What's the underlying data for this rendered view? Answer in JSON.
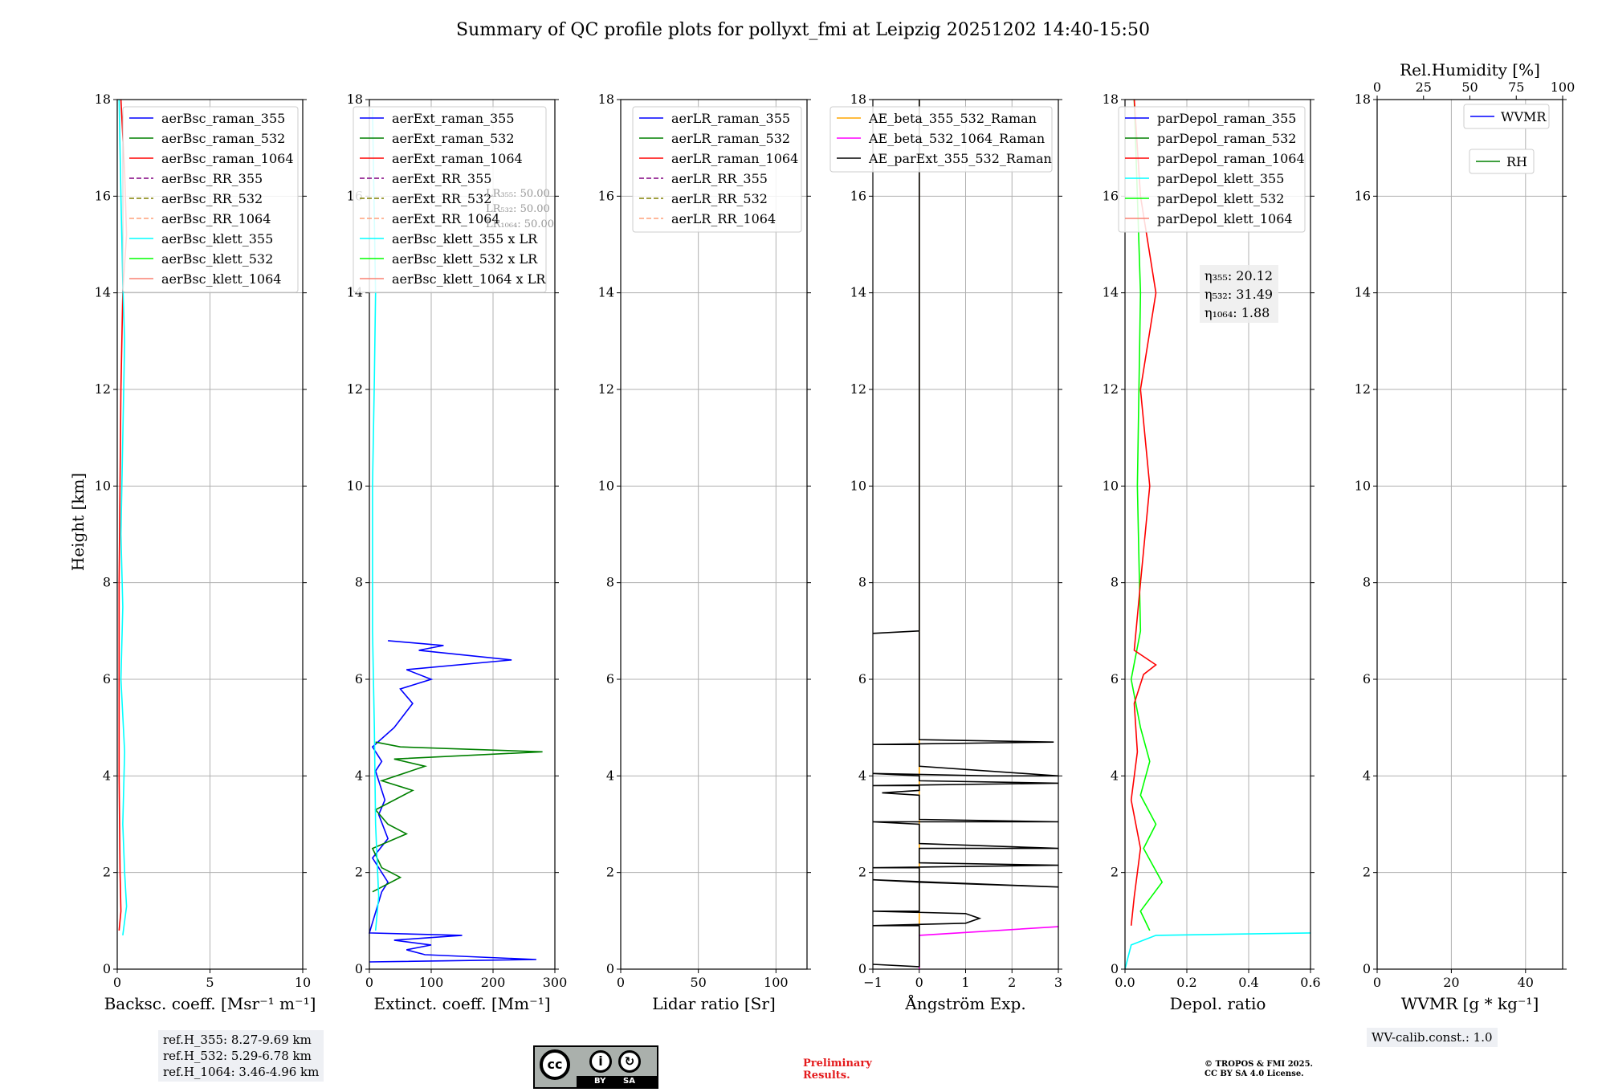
{
  "title": "Summary of QC profile plots for pollyxt_fmi at Leipzig 20251202 14:40-15:50",
  "ylabel": "Height [km]",
  "colors": {
    "blue": "#0000ff",
    "green": "#008000",
    "red": "#ff0000",
    "purple": "#800080",
    "olive": "#808000",
    "salmon": "#fa8072",
    "lightsalmon": "#ffa07a",
    "cyan": "#00ffff",
    "lime": "#00ff00",
    "orange": "#ffa500",
    "magenta": "#ff00ff",
    "black": "#000000"
  },
  "chart_data": [
    {
      "type": "line",
      "xlabel": "Backsc. coeff. [Msr⁻¹ m⁻¹]",
      "xlim": [
        0,
        10
      ],
      "ylim": [
        0,
        18
      ],
      "xticks": [
        "0",
        "5",
        "10"
      ],
      "yticks": [
        "0",
        "2",
        "4",
        "6",
        "8",
        "10",
        "12",
        "14",
        "16",
        "18"
      ],
      "legend": [
        "aerBsc_raman_355",
        "aerBsc_raman_532",
        "aerBsc_raman_1064",
        "aerBsc_RR_355",
        "aerBsc_RR_532",
        "aerBsc_RR_1064",
        "aerBsc_klett_355",
        "aerBsc_klett_532",
        "aerBsc_klett_1064"
      ],
      "series": [
        {
          "name": "aerBsc_raman_1064",
          "color": "red",
          "points": [
            [
              0.1,
              0.8
            ],
            [
              0.2,
              1.2
            ],
            [
              0.15,
              2
            ],
            [
              0.1,
              4
            ],
            [
              0.1,
              8
            ],
            [
              0.2,
              12
            ],
            [
              0.3,
              14
            ],
            [
              0.5,
              15.2
            ],
            [
              0.4,
              16.5
            ],
            [
              0.2,
              18
            ]
          ]
        },
        {
          "name": "aerBsc_klett_355",
          "color": "cyan",
          "points": [
            [
              0.3,
              0.7
            ],
            [
              0.5,
              1.3
            ],
            [
              0.4,
              2
            ],
            [
              0.3,
              3
            ],
            [
              0.4,
              4.5
            ],
            [
              0.2,
              6
            ],
            [
              0.3,
              7.5
            ],
            [
              0.2,
              9
            ],
            [
              0.3,
              11
            ],
            [
              0.4,
              13
            ],
            [
              0.3,
              14.2
            ],
            [
              0.2,
              16
            ],
            [
              0.1,
              18
            ]
          ]
        }
      ],
      "info_label": "ref.H_355: 8.27-9.69 km\nref.H_532: 5.29-6.78 km\nref.H_1064: 3.46-4.96 km",
      "info_lines": [
        "ref.H_355: 8.27-9.69 km",
        "ref.H_532: 5.29-6.78 km",
        "ref.H_1064: 3.46-4.96 km"
      ]
    },
    {
      "type": "line",
      "xlabel": "Extinct. coeff. [Mm⁻¹]",
      "xlim": [
        0,
        300
      ],
      "ylim": [
        0,
        18
      ],
      "xticks": [
        "0",
        "100",
        "200",
        "300"
      ],
      "yticks": [
        "0",
        "2",
        "4",
        "6",
        "8",
        "10",
        "12",
        "14",
        "16",
        "18"
      ],
      "legend": [
        "aerExt_raman_355",
        "aerExt_raman_532",
        "aerExt_raman_1064",
        "aerExt_RR_355",
        "aerExt_RR_532",
        "aerExt_RR_1064",
        "aerBsc_klett_355 x LR",
        "aerBsc_klett_532 x LR",
        "aerBsc_klett_1064 x LR"
      ],
      "lr_annotation": [
        "LR₃₅₅: 50.00",
        "LR₅₃₂: 50.00",
        "LR₁₀₆₄: 50.00"
      ],
      "series": [
        {
          "name": "aerExt_raman_355",
          "color": "blue",
          "points": [
            [
              0,
              0.15
            ],
            [
              270,
              0.2
            ],
            [
              90,
              0.3
            ],
            [
              60,
              0.4
            ],
            [
              100,
              0.5
            ],
            [
              40,
              0.6
            ],
            [
              150,
              0.7
            ],
            [
              0,
              0.75
            ],
            [
              20,
              1.6
            ],
            [
              30,
              1.8
            ],
            [
              20,
              2.0
            ],
            [
              5,
              2.3
            ],
            [
              30,
              2.7
            ],
            [
              15,
              3.2
            ],
            [
              25,
              3.5
            ],
            [
              10,
              4.1
            ],
            [
              20,
              4.3
            ],
            [
              5,
              4.6
            ],
            [
              40,
              5.0
            ],
            [
              70,
              5.5
            ],
            [
              50,
              5.8
            ],
            [
              100,
              6.0
            ],
            [
              60,
              6.2
            ],
            [
              230,
              6.4
            ],
            [
              80,
              6.6
            ],
            [
              120,
              6.7
            ],
            [
              30,
              6.8
            ]
          ]
        },
        {
          "name": "aerExt_raman_532",
          "color": "green",
          "points": [
            [
              5,
              1.6
            ],
            [
              50,
              1.9
            ],
            [
              20,
              2.1
            ],
            [
              5,
              2.5
            ],
            [
              60,
              2.8
            ],
            [
              30,
              3.0
            ],
            [
              10,
              3.3
            ],
            [
              70,
              3.7
            ],
            [
              20,
              3.9
            ],
            [
              90,
              4.2
            ],
            [
              40,
              4.35
            ],
            [
              280,
              4.5
            ],
            [
              50,
              4.6
            ],
            [
              10,
              4.7
            ]
          ]
        },
        {
          "name": "aerBsc_klett_355 x LR",
          "color": "cyan",
          "points": [
            [
              10,
              0.8
            ],
            [
              15,
              1.5
            ],
            [
              10,
              3
            ],
            [
              8,
              5
            ],
            [
              5,
              7
            ],
            [
              5,
              10
            ],
            [
              8,
              12.2
            ],
            [
              10,
              14
            ],
            [
              5,
              17.8
            ]
          ]
        }
      ]
    },
    {
      "type": "line",
      "xlabel": "Lidar ratio [Sr]",
      "xlim": [
        0,
        120
      ],
      "ylim": [
        0,
        18
      ],
      "xticks": [
        "0",
        "50",
        "100"
      ],
      "yticks": [
        "0",
        "2",
        "4",
        "6",
        "8",
        "10",
        "12",
        "14",
        "16",
        "18"
      ],
      "legend": [
        "aerLR_raman_355",
        "aerLR_raman_532",
        "aerLR_raman_1064",
        "aerLR_RR_355",
        "aerLR_RR_532",
        "aerLR_RR_1064"
      ],
      "series": []
    },
    {
      "type": "line",
      "xlabel": "Ångström Exp.",
      "xlim": [
        -1,
        3
      ],
      "ylim": [
        0,
        18
      ],
      "xticks": [
        "−1",
        "0",
        "1",
        "2",
        "3"
      ],
      "yticks": [
        "0",
        "2",
        "4",
        "6",
        "8",
        "10",
        "12",
        "14",
        "16",
        "18"
      ],
      "legend": [
        "AE_beta_355_532_Raman",
        "AE_beta_532_1064_Raman",
        "AE_parExt_355_532_Raman"
      ],
      "series": [
        {
          "name": "AE_beta_355_532_Raman",
          "color": "orange",
          "points": [
            [
              0,
              0
            ],
            [
              0,
              18
            ]
          ]
        },
        {
          "name": "AE_beta_532_1064_Raman",
          "color": "magenta",
          "points": [
            [
              0,
              0
            ],
            [
              0,
              0.7
            ],
            [
              3,
              0.88
            ]
          ]
        },
        {
          "name": "AE_parExt_355_532_Raman",
          "color": "black",
          "points": [
            [
              -1,
              0.1
            ],
            [
              0,
              0.05
            ],
            [
              0,
              0.9
            ],
            [
              -1,
              0.9
            ],
            [
              1,
              0.95
            ],
            [
              1.3,
              1.05
            ],
            [
              1,
              1.15
            ],
            [
              -1,
              1.2
            ],
            [
              0,
              1.2
            ],
            [
              0,
              1.8
            ],
            [
              -1,
              1.85
            ],
            [
              3,
              1.7
            ],
            [
              0,
              1.8
            ],
            [
              0,
              2.1
            ],
            [
              -1,
              2.1
            ],
            [
              3,
              2.15
            ],
            [
              0,
              2.2
            ],
            [
              0,
              2.5
            ],
            [
              3,
              2.5
            ],
            [
              0,
              2.6
            ],
            [
              0,
              3.0
            ],
            [
              -1,
              3.05
            ],
            [
              3,
              3.05
            ],
            [
              0,
              3.1
            ],
            [
              0,
              3.6
            ],
            [
              -0.8,
              3.65
            ],
            [
              0,
              3.7
            ],
            [
              0,
              3.8
            ],
            [
              -1,
              3.8
            ],
            [
              3,
              3.85
            ],
            [
              0,
              3.9
            ],
            [
              0,
              4.0
            ],
            [
              -1,
              4.05
            ],
            [
              1.5,
              4.0
            ],
            [
              3,
              4.0
            ],
            [
              0,
              4.2
            ],
            [
              0,
              4.65
            ],
            [
              -1,
              4.65
            ],
            [
              2.9,
              4.7
            ],
            [
              0,
              4.75
            ],
            [
              0,
              7.0
            ],
            [
              -1,
              6.95
            ],
            [
              0,
              7.0
            ],
            [
              0,
              18
            ]
          ]
        }
      ]
    },
    {
      "type": "line",
      "xlabel": "Depol. ratio",
      "xlim": [
        0,
        0.6
      ],
      "ylim": [
        0,
        18
      ],
      "xticks": [
        "0.0",
        "0.2",
        "0.4",
        "0.6"
      ],
      "yticks": [
        "0",
        "2",
        "4",
        "6",
        "8",
        "10",
        "12",
        "14",
        "16",
        "18"
      ],
      "legend": [
        "parDepol_raman_355",
        "parDepol_raman_532",
        "parDepol_raman_1064",
        "parDepol_klett_355",
        "parDepol_klett_532",
        "parDepol_klett_1064"
      ],
      "eta_annotation": [
        "η₃₅₅: 20.12",
        "η₅₃₂: 31.49",
        "η₁₀₆₄: 1.88"
      ],
      "series": [
        {
          "name": "parDepol_klett_532",
          "color": "lime",
          "points": [
            [
              0.08,
              0.8
            ],
            [
              0.05,
              1.2
            ],
            [
              0.12,
              1.8
            ],
            [
              0.06,
              2.5
            ],
            [
              0.1,
              3.0
            ],
            [
              0.05,
              3.6
            ],
            [
              0.08,
              4.3
            ],
            [
              0.05,
              5
            ],
            [
              0.02,
              6
            ],
            [
              0.05,
              7
            ],
            [
              0.04,
              10
            ],
            [
              0.05,
              14
            ],
            [
              0.03,
              18
            ]
          ]
        },
        {
          "name": "parDepol_raman_1064",
          "color": "red",
          "points": [
            [
              0.02,
              0.9
            ],
            [
              0.03,
              1.5
            ],
            [
              0.05,
              2.5
            ],
            [
              0.02,
              3.5
            ],
            [
              0.04,
              4.5
            ],
            [
              0.03,
              5.5
            ],
            [
              0.06,
              6.1
            ],
            [
              0.1,
              6.3
            ],
            [
              0.03,
              6.6
            ],
            [
              0.05,
              8
            ],
            [
              0.08,
              10
            ],
            [
              0.05,
              12
            ],
            [
              0.1,
              14
            ],
            [
              0.05,
              16
            ],
            [
              0.03,
              18
            ]
          ]
        },
        {
          "name": "parDepol_klett_355",
          "color": "cyan",
          "points": [
            [
              0.0,
              0.0
            ],
            [
              0.02,
              0.5
            ],
            [
              0.1,
              0.7
            ],
            [
              0.6,
              0.75
            ]
          ]
        }
      ]
    },
    {
      "type": "line",
      "xlabel": "WVMR [g * kg⁻¹]",
      "top_xlabel": "Rel.Humidity [%]",
      "xlim": [
        0,
        50
      ],
      "ylim": [
        0,
        18
      ],
      "top_xlim": [
        0,
        100
      ],
      "xticks": [
        "0",
        "20",
        "40"
      ],
      "top_xticks": [
        "0",
        "25",
        "50",
        "75",
        "100"
      ],
      "yticks": [
        "0",
        "2",
        "4",
        "6",
        "8",
        "10",
        "12",
        "14",
        "16",
        "18"
      ],
      "legend": [
        "WVMR",
        "RH"
      ],
      "series": [],
      "info_label": "WV-calib.const.: 1.0"
    }
  ],
  "footer": {
    "cc_by": "BY",
    "cc_sa": "SA",
    "preliminary": [
      "Preliminary",
      "Results."
    ],
    "copyright": [
      "© TROPOS & FMI 2025.",
      "CC BY SA 4.0 License."
    ]
  }
}
